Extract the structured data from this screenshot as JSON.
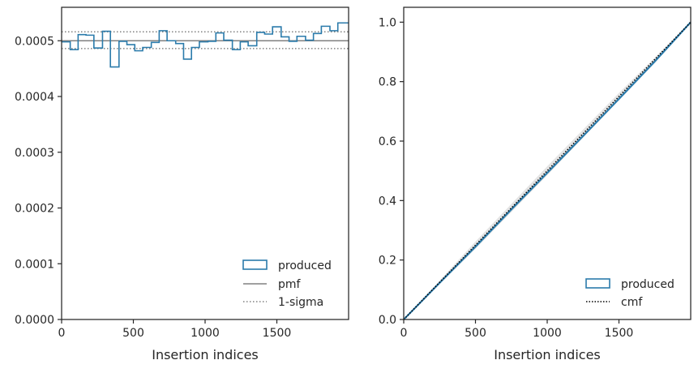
{
  "chart_data": [
    {
      "type": "line",
      "xlabel": "Insertion indices",
      "ylabel": "",
      "xlim": [
        0,
        2000
      ],
      "ylim": [
        0,
        0.00056
      ],
      "xticks": [
        0,
        500,
        1000,
        1500
      ],
      "xtick_labels": [
        "0",
        "500",
        "1000",
        "1500"
      ],
      "yticks": [
        0,
        0.0001,
        0.0002,
        0.0003,
        0.0004,
        0.0005
      ],
      "ytick_labels": [
        "0.0000",
        "0.0001",
        "0.0002",
        "0.0003",
        "0.0004",
        "0.0005"
      ],
      "grid": false,
      "legend_position": "lower-right",
      "histogram": {
        "name": "produced",
        "color": "#2b7bab",
        "bin_edges": [
          0,
          60,
          115,
          170,
          225,
          285,
          340,
          400,
          455,
          510,
          565,
          625,
          680,
          735,
          795,
          850,
          905,
          960,
          1020,
          1075,
          1130,
          1190,
          1245,
          1300,
          1360,
          1415,
          1470,
          1530,
          1585,
          1640,
          1700,
          1755,
          1810,
          1870,
          1925,
          2000
        ],
        "values": [
          0.000498,
          0.000484,
          0.000511,
          0.00051,
          0.000487,
          0.000517,
          0.000453,
          0.000499,
          0.000493,
          0.000482,
          0.000488,
          0.000497,
          0.000518,
          0.0005,
          0.000495,
          0.000467,
          0.000488,
          0.000498,
          0.000499,
          0.000514,
          0.000501,
          0.000484,
          0.000498,
          0.000491,
          0.000515,
          0.000512,
          0.000525,
          0.000507,
          0.000499,
          0.000508,
          0.000501,
          0.000513,
          0.000526,
          0.000518,
          0.000532
        ]
      },
      "pmf": {
        "name": "pmf",
        "value": 0.0005,
        "color": "#808080"
      },
      "sigma": {
        "name": "1-sigma",
        "values": [
          0.000516,
          0.000486
        ],
        "color": "#808080"
      }
    },
    {
      "type": "line",
      "xlabel": "Insertion indices",
      "ylabel": "",
      "xlim": [
        0,
        2000
      ],
      "ylim": [
        0,
        1.05
      ],
      "xticks": [
        0,
        500,
        1000,
        1500
      ],
      "xtick_labels": [
        "0",
        "500",
        "1000",
        "1500"
      ],
      "yticks": [
        0,
        0.2,
        0.4,
        0.6,
        0.8,
        1.0
      ],
      "ytick_labels": [
        "0.0",
        "0.2",
        "0.4",
        "0.6",
        "0.8",
        "1.0"
      ],
      "grid": false,
      "legend_position": "lower-right",
      "series": [
        {
          "name": "produced",
          "x": [
            0,
            250,
            500,
            750,
            1000,
            1250,
            1500,
            1750,
            2000
          ],
          "y": [
            0,
            0.123,
            0.245,
            0.37,
            0.493,
            0.617,
            0.742,
            0.868,
            1.0
          ],
          "color": "#2b7bab"
        },
        {
          "name": "cmf",
          "x": [
            0,
            2000
          ],
          "y": [
            0,
            1.0
          ],
          "color": "#000000"
        }
      ],
      "band": {
        "x": [
          0,
          500,
          1000,
          1500,
          2000
        ],
        "upper": [
          0,
          0.262,
          0.515,
          0.762,
          1.0
        ],
        "lower": [
          0,
          0.238,
          0.485,
          0.738,
          1.0
        ],
        "color": "#d9d9d9"
      }
    }
  ]
}
